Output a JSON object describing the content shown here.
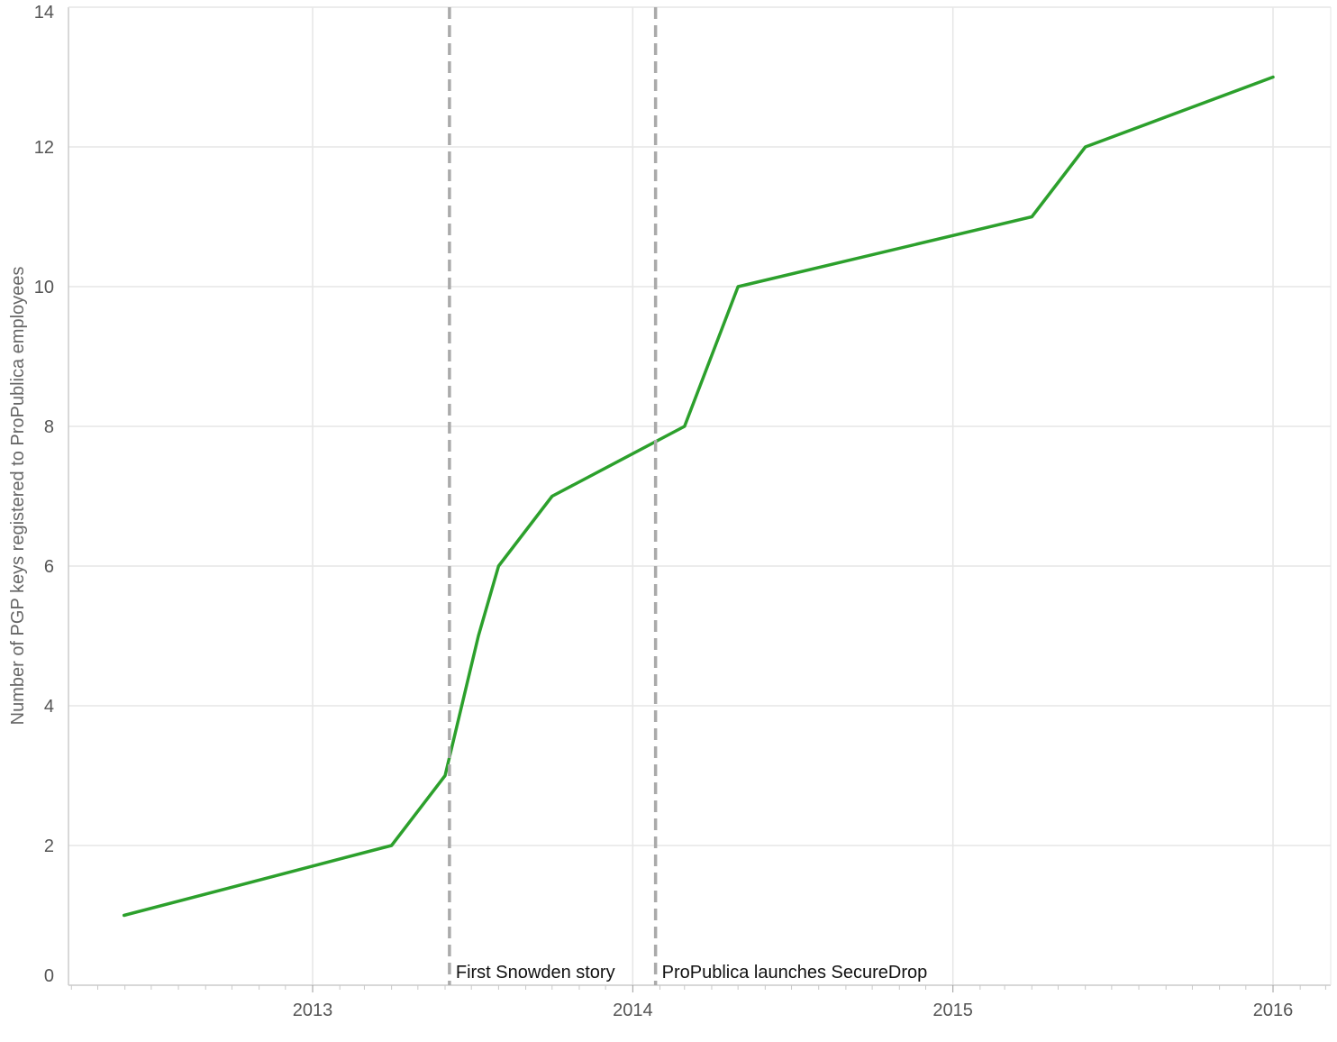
{
  "chart_data": {
    "type": "line",
    "title": "",
    "xlabel": "",
    "ylabel": "Number of PGP keys registered to ProPublica employees",
    "ylim": [
      0,
      14
    ],
    "xlim": [
      "2012-03-01",
      "2016-03-20"
    ],
    "y_ticks": [
      0,
      2,
      4,
      6,
      8,
      10,
      12,
      14
    ],
    "x_ticks": [
      "2013",
      "2014",
      "2015",
      "2016"
    ],
    "grid": true,
    "series": [
      {
        "color": "#2ca02c",
        "points": [
          {
            "x": "2012-05-31",
            "y": 1
          },
          {
            "x": "2013-04-01",
            "y": 2
          },
          {
            "x": "2013-06-01",
            "y": 3
          },
          {
            "x": "2013-07-09",
            "y": 5
          },
          {
            "x": "2013-08-01",
            "y": 6
          },
          {
            "x": "2013-10-01",
            "y": 7
          },
          {
            "x": "2014-03-01",
            "y": 8
          },
          {
            "x": "2014-05-01",
            "y": 10
          },
          {
            "x": "2015-04-01",
            "y": 11
          },
          {
            "x": "2015-06-01",
            "y": 12
          },
          {
            "x": "2016-01-01",
            "y": 13
          }
        ]
      }
    ],
    "annotations": [
      {
        "x": "2013-06-06",
        "label": "First Snowden story",
        "line_color": "#aaaaaa",
        "line_style": "dashed"
      },
      {
        "x": "2014-01-27",
        "label": "ProPublica launches SecureDrop",
        "line_color": "#aaaaaa",
        "line_style": "dashed"
      }
    ]
  }
}
